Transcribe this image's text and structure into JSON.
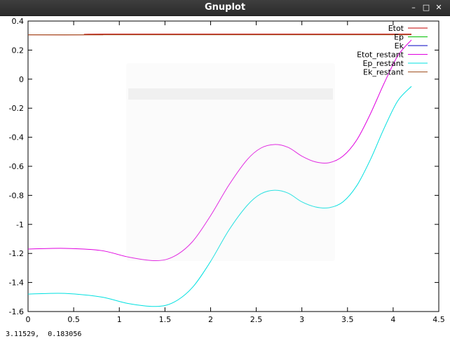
{
  "window": {
    "title": "Gnuplot",
    "minimize_label": "–",
    "maximize_label": "□",
    "close_label": "✕"
  },
  "status": {
    "coordinates": "3.11529,  0.183056"
  },
  "colors": {
    "Etot": "#c00000",
    "Ep": "#00c000",
    "Ek": "#0000c0",
    "Etot_restant": "#e000e0",
    "Ep_restant": "#00e0e0",
    "Ek_restant": "#a05020"
  },
  "chart_data": {
    "type": "line",
    "title": "",
    "xlabel": "",
    "ylabel": "",
    "xlim": [
      0,
      4.5
    ],
    "ylim": [
      -1.6,
      0.4
    ],
    "xticks": [
      "0",
      "0.5",
      "1",
      "1.5",
      "2",
      "2.5",
      "3",
      "3.5",
      "4",
      "4.5"
    ],
    "yticks": [
      "0.4",
      "0.2",
      "0",
      "-0.2",
      "-0.4",
      "-0.6",
      "-0.8",
      "-1",
      "-1.2",
      "-1.4",
      "-1.6"
    ],
    "legend_position": "top-right",
    "grid": false,
    "series": [
      {
        "name": "Etot",
        "color": "#c00000",
        "x": [
          0,
          0.8,
          0.85,
          4.2
        ],
        "y": [
          0.305,
          0.305,
          0.31,
          0.31
        ]
      },
      {
        "name": "Ep",
        "color": "#00c000",
        "x": [],
        "y": []
      },
      {
        "name": "Ek",
        "color": "#0000c0",
        "x": [],
        "y": []
      },
      {
        "name": "Etot_restant",
        "color": "#e000e0",
        "x": [
          0,
          0.4,
          0.8,
          1.1,
          1.4,
          1.6,
          1.8,
          2.0,
          2.2,
          2.4,
          2.55,
          2.7,
          2.85,
          3.0,
          3.15,
          3.3,
          3.45,
          3.6,
          3.75,
          3.9,
          4.05,
          4.2
        ],
        "y": [
          -1.17,
          -1.165,
          -1.18,
          -1.225,
          -1.25,
          -1.22,
          -1.12,
          -0.94,
          -0.73,
          -0.555,
          -0.475,
          -0.45,
          -0.47,
          -0.53,
          -0.57,
          -0.575,
          -0.53,
          -0.42,
          -0.24,
          -0.03,
          0.16,
          0.27
        ]
      },
      {
        "name": "Ep_restant",
        "color": "#00e0e0",
        "x": [
          0,
          0.4,
          0.8,
          1.1,
          1.4,
          1.6,
          1.8,
          2.0,
          2.2,
          2.4,
          2.55,
          2.7,
          2.85,
          3.0,
          3.15,
          3.3,
          3.45,
          3.6,
          3.75,
          3.9,
          4.05,
          4.2
        ],
        "y": [
          -1.48,
          -1.475,
          -1.5,
          -1.545,
          -1.565,
          -1.535,
          -1.435,
          -1.255,
          -1.04,
          -0.87,
          -0.79,
          -0.765,
          -0.785,
          -0.845,
          -0.88,
          -0.885,
          -0.845,
          -0.735,
          -0.555,
          -0.34,
          -0.15,
          -0.05
        ]
      },
      {
        "name": "Ek_restant",
        "color": "#a05020",
        "x": [
          0,
          4.2
        ],
        "y": [
          0.305,
          0.305
        ]
      }
    ]
  }
}
